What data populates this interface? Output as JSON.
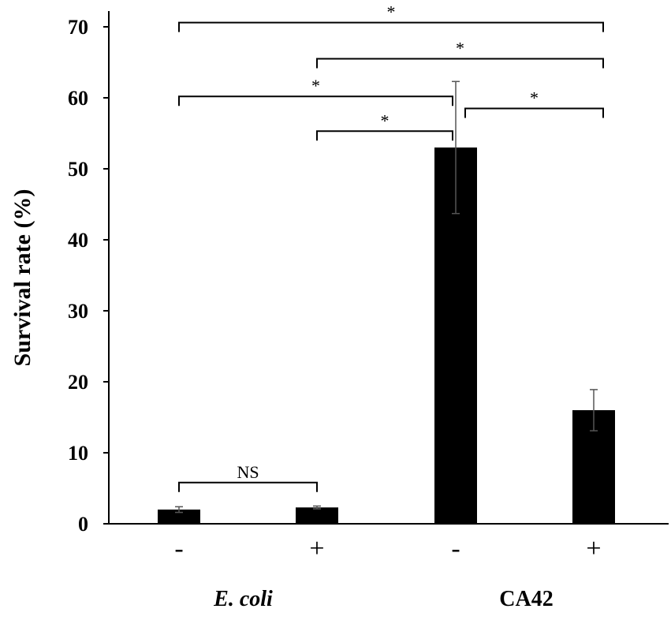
{
  "chart_data": {
    "type": "bar",
    "ylabel": "Survival rate (%)",
    "xlabel": "",
    "ylim": [
      0,
      70
    ],
    "yticks": [
      0,
      10,
      20,
      30,
      40,
      50,
      60,
      70
    ],
    "categories": [
      "-",
      "+",
      "-",
      "+"
    ],
    "values": [
      2.0,
      2.3,
      53.0,
      16.0
    ],
    "error": [
      0.4,
      0.2,
      9.3,
      2.9
    ],
    "groups": [
      {
        "label": "E. coli",
        "italic": true,
        "categories": [
          0,
          1
        ]
      },
      {
        "label": "CA42",
        "italic": false,
        "categories": [
          2,
          3
        ]
      }
    ],
    "bar_color": "#000000",
    "error_color": "#555555",
    "grid": false,
    "significance": [
      {
        "from": 0,
        "to": 1,
        "label": "NS",
        "level": 5.8
      },
      {
        "from": 1,
        "to": 2,
        "label": "*",
        "level": 55.3
      },
      {
        "from": 0,
        "to": 2,
        "label": "*",
        "level": 60.2
      },
      {
        "from": 2,
        "to": 3,
        "label": "*",
        "level": 58.5
      },
      {
        "from": 1,
        "to": 3,
        "label": "*",
        "level": 65.5
      },
      {
        "from": 0,
        "to": 3,
        "label": "*",
        "level": 70.6
      }
    ]
  }
}
